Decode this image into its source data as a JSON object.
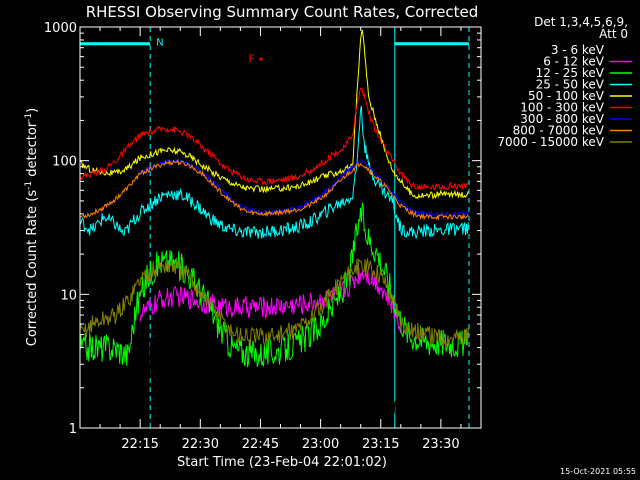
{
  "chart_data": {
    "type": "line",
    "title": "RHESSI Observing Summary Count Rates, Corrected",
    "xlabel": "Start Time (23-Feb-04 22:01:02)",
    "ylabel_main": "Corrected Count Rate (s",
    "ylabel_sup1": "-1",
    "ylabel_mid": " detector",
    "ylabel_sup2": "-1",
    "ylabel_end": ")",
    "y_scale": "log",
    "ylim": [
      1,
      1000
    ],
    "y_ticks": [
      {
        "v": 1,
        "label": "1"
      },
      {
        "v": 10,
        "label": "10"
      },
      {
        "v": 100,
        "label": "100"
      },
      {
        "v": 1000,
        "label": "1000"
      }
    ],
    "xlim_minutes_after_22h": [
      0,
      100
    ],
    "x_ticks": [
      {
        "t": 15,
        "label": "22:15"
      },
      {
        "t": 30,
        "label": "22:30"
      },
      {
        "t": 45,
        "label": "22:45"
      },
      {
        "t": 60,
        "label": "23:00"
      },
      {
        "t": 75,
        "label": "23:15"
      },
      {
        "t": 90,
        "label": "23:30"
      }
    ],
    "legend_header": [
      "Det 1,3,4,5,6,9,",
      "Att 0"
    ],
    "legend_position": "top-right",
    "annotations": {
      "night_label": "N",
      "flare_label": "F",
      "night_ranges": [
        [
          0,
          17.5
        ],
        [
          78.5,
          97
        ]
      ],
      "night_level": 750,
      "flare_flag": {
        "t": 44,
        "v": 580
      },
      "dashed_lines": [
        17.5,
        97
      ],
      "solid_lines": [
        0,
        78.5
      ]
    },
    "series": [
      {
        "name": "3 - 6 keV",
        "color": "#000000",
        "points": [
          [
            13,
            0.5
          ],
          [
            13.5,
            2.2
          ],
          [
            15,
            2.6
          ],
          [
            17,
            3.0
          ],
          [
            19,
            5.0
          ],
          [
            22,
            7.2
          ],
          [
            25,
            7.8
          ],
          [
            28,
            7.6
          ],
          [
            31,
            6.2
          ],
          [
            34,
            4.2
          ],
          [
            37,
            2.8
          ],
          [
            40,
            2.3
          ],
          [
            43,
            2.6
          ],
          [
            47,
            2.8
          ],
          [
            50,
            2.9
          ],
          [
            53,
            3.1
          ],
          [
            56,
            3.3
          ],
          [
            59,
            4.0
          ],
          [
            62,
            5.2
          ],
          [
            65,
            6.8
          ],
          [
            68,
            9.5
          ],
          [
            70,
            12.5
          ],
          [
            71,
            13.5
          ],
          [
            72,
            12.0
          ],
          [
            74,
            8.0
          ],
          [
            76,
            3.8
          ],
          [
            78,
            1.8
          ],
          [
            80,
            1.0
          ],
          [
            81,
            0.5
          ]
        ]
      },
      {
        "name": "6 - 12 keV",
        "color": "#ff00ff",
        "points": [
          [
            15,
            7.2
          ],
          [
            18,
            8.0
          ],
          [
            20,
            9.2
          ],
          [
            24,
            9.6
          ],
          [
            28,
            9.3
          ],
          [
            32,
            8.5
          ],
          [
            36,
            8.0
          ],
          [
            40,
            8.0
          ],
          [
            44,
            8.0
          ],
          [
            48,
            8.1
          ],
          [
            52,
            8.2
          ],
          [
            56,
            8.5
          ],
          [
            60,
            9.0
          ],
          [
            64,
            10.0
          ],
          [
            67,
            11.5
          ],
          [
            70,
            14.5
          ],
          [
            71,
            15.0
          ],
          [
            73,
            13.0
          ],
          [
            75,
            11.5
          ],
          [
            77,
            9.0
          ],
          [
            79,
            7.0
          ],
          [
            80,
            6.0
          ]
        ]
      },
      {
        "name": "12 - 25 keV",
        "color": "#00ff00",
        "points": [
          [
            0,
            4.0
          ],
          [
            3,
            4.0
          ],
          [
            6,
            4.0
          ],
          [
            9,
            4.0
          ],
          [
            12,
            3.5
          ],
          [
            14,
            8.0
          ],
          [
            17,
            14.0
          ],
          [
            20,
            17.5
          ],
          [
            23,
            17.5
          ],
          [
            26,
            15.5
          ],
          [
            29,
            12.0
          ],
          [
            32,
            8.5
          ],
          [
            35,
            5.5
          ],
          [
            38,
            4.0
          ],
          [
            42,
            3.6
          ],
          [
            46,
            3.6
          ],
          [
            50,
            3.8
          ],
          [
            54,
            4.2
          ],
          [
            58,
            5.2
          ],
          [
            61,
            6.5
          ],
          [
            64,
            9.0
          ],
          [
            67,
            13.0
          ],
          [
            68.5,
            24.0
          ],
          [
            69.5,
            35.0
          ],
          [
            70.2,
            40.0
          ],
          [
            71,
            32.0
          ],
          [
            72,
            26.0
          ],
          [
            74,
            21.0
          ],
          [
            76,
            15.0
          ],
          [
            78,
            10.0
          ],
          [
            80,
            6.5
          ],
          [
            82,
            5.0
          ],
          [
            86,
            4.5
          ],
          [
            90,
            4.4
          ],
          [
            94,
            4.3
          ],
          [
            97,
            4.3
          ]
        ]
      },
      {
        "name": "25 - 50 keV",
        "color": "#00ffff",
        "points": [
          [
            0,
            35
          ],
          [
            3,
            30
          ],
          [
            6,
            38
          ],
          [
            9,
            33
          ],
          [
            11,
            28
          ],
          [
            14,
            38
          ],
          [
            17,
            46
          ],
          [
            20,
            54
          ],
          [
            23,
            57
          ],
          [
            26,
            54
          ],
          [
            29,
            47
          ],
          [
            32,
            38
          ],
          [
            35,
            33
          ],
          [
            38,
            30
          ],
          [
            41,
            29
          ],
          [
            45,
            29
          ],
          [
            49,
            30
          ],
          [
            53,
            31
          ],
          [
            57,
            34
          ],
          [
            60,
            39
          ],
          [
            63,
            45
          ],
          [
            66,
            50
          ],
          [
            68,
            55
          ],
          [
            69,
            90
          ],
          [
            70,
            260
          ],
          [
            71,
            130
          ],
          [
            72,
            90
          ],
          [
            74,
            70
          ],
          [
            76,
            58
          ],
          [
            78,
            50
          ],
          [
            79,
            38
          ],
          [
            80,
            31
          ],
          [
            83,
            29
          ],
          [
            86,
            30
          ],
          [
            90,
            30
          ],
          [
            94,
            31
          ],
          [
            97,
            31
          ]
        ]
      },
      {
        "name": "50 - 100 keV",
        "color": "#ffff00",
        "points": [
          [
            0,
            95
          ],
          [
            3,
            85
          ],
          [
            6,
            82
          ],
          [
            9,
            80
          ],
          [
            12,
            88
          ],
          [
            15,
            105
          ],
          [
            18,
            113
          ],
          [
            21,
            120
          ],
          [
            24,
            118
          ],
          [
            27,
            110
          ],
          [
            30,
            95
          ],
          [
            33,
            82
          ],
          [
            36,
            73
          ],
          [
            39,
            66
          ],
          [
            42,
            62
          ],
          [
            46,
            61
          ],
          [
            50,
            62
          ],
          [
            54,
            64
          ],
          [
            57,
            68
          ],
          [
            60,
            75
          ],
          [
            63,
            80
          ],
          [
            66,
            85
          ],
          [
            68,
            92
          ],
          [
            69,
            300
          ],
          [
            70,
            800
          ],
          [
            70.5,
            1000
          ],
          [
            71,
            620
          ],
          [
            72,
            300
          ],
          [
            74,
            190
          ],
          [
            76,
            120
          ],
          [
            78,
            85
          ],
          [
            80,
            70
          ],
          [
            83,
            55
          ],
          [
            86,
            55
          ],
          [
            90,
            56
          ],
          [
            94,
            56
          ],
          [
            97,
            56
          ]
        ]
      },
      {
        "name": "100 - 300 keV",
        "color": "#ff0000",
        "points": [
          [
            0,
            75
          ],
          [
            3,
            80
          ],
          [
            6,
            85
          ],
          [
            9,
            100
          ],
          [
            12,
            125
          ],
          [
            15,
            155
          ],
          [
            18,
            165
          ],
          [
            21,
            175
          ],
          [
            24,
            170
          ],
          [
            27,
            155
          ],
          [
            30,
            130
          ],
          [
            33,
            110
          ],
          [
            36,
            90
          ],
          [
            39,
            80
          ],
          [
            42,
            72
          ],
          [
            46,
            70
          ],
          [
            50,
            72
          ],
          [
            54,
            75
          ],
          [
            57,
            82
          ],
          [
            60,
            95
          ],
          [
            63,
            110
          ],
          [
            66,
            125
          ],
          [
            68,
            160
          ],
          [
            69,
            250
          ],
          [
            70,
            360
          ],
          [
            71,
            300
          ],
          [
            72,
            230
          ],
          [
            74,
            160
          ],
          [
            76,
            125
          ],
          [
            78,
            100
          ],
          [
            80,
            80
          ],
          [
            83,
            65
          ],
          [
            86,
            63
          ],
          [
            90,
            64
          ],
          [
            94,
            65
          ],
          [
            97,
            65
          ]
        ]
      },
      {
        "name": "300 - 800 keV",
        "color": "#0000ff",
        "points": [
          [
            15,
            80
          ],
          [
            18,
            90
          ],
          [
            21,
            97
          ],
          [
            24,
            100
          ],
          [
            27,
            95
          ],
          [
            30,
            85
          ],
          [
            33,
            70
          ],
          [
            36,
            58
          ],
          [
            39,
            48
          ],
          [
            42,
            43
          ],
          [
            46,
            41
          ],
          [
            50,
            42
          ],
          [
            54,
            44
          ],
          [
            57,
            48
          ],
          [
            60,
            55
          ],
          [
            63,
            65
          ],
          [
            66,
            80
          ],
          [
            68,
            90
          ],
          [
            70,
            100
          ],
          [
            72,
            90
          ],
          [
            74,
            78
          ],
          [
            76,
            68
          ],
          [
            78,
            58
          ],
          [
            80,
            48
          ],
          [
            83,
            42
          ],
          [
            86,
            40
          ],
          [
            90,
            40
          ],
          [
            94,
            40
          ],
          [
            97,
            40
          ]
        ]
      },
      {
        "name": "800 - 7000 keV",
        "color": "#ff8000",
        "points": [
          [
            0,
            38
          ],
          [
            3,
            40
          ],
          [
            6,
            45
          ],
          [
            9,
            52
          ],
          [
            12,
            63
          ],
          [
            15,
            80
          ],
          [
            18,
            88
          ],
          [
            21,
            95
          ],
          [
            24,
            98
          ],
          [
            27,
            93
          ],
          [
            30,
            82
          ],
          [
            33,
            67
          ],
          [
            36,
            55
          ],
          [
            39,
            46
          ],
          [
            42,
            41
          ],
          [
            46,
            40
          ],
          [
            50,
            41
          ],
          [
            54,
            43
          ],
          [
            57,
            46
          ],
          [
            60,
            52
          ],
          [
            63,
            62
          ],
          [
            66,
            76
          ],
          [
            68,
            86
          ],
          [
            70,
            97
          ],
          [
            72,
            86
          ],
          [
            74,
            74
          ],
          [
            76,
            65
          ],
          [
            78,
            55
          ],
          [
            80,
            46
          ],
          [
            83,
            40
          ],
          [
            86,
            38
          ],
          [
            90,
            38
          ],
          [
            94,
            38
          ],
          [
            97,
            38
          ]
        ]
      },
      {
        "name": "7000 - 15000 keV",
        "color": "#808000",
        "points": [
          [
            0,
            5.0
          ],
          [
            3,
            6.0
          ],
          [
            6,
            6.5
          ],
          [
            9,
            7.0
          ],
          [
            12,
            9.0
          ],
          [
            15,
            13.0
          ],
          [
            18,
            15.0
          ],
          [
            21,
            16.5
          ],
          [
            24,
            16.0
          ],
          [
            27,
            13.5
          ],
          [
            30,
            10.5
          ],
          [
            33,
            8.0
          ],
          [
            36,
            6.0
          ],
          [
            39,
            5.0
          ],
          [
            42,
            4.8
          ],
          [
            46,
            4.8
          ],
          [
            50,
            5.0
          ],
          [
            54,
            5.5
          ],
          [
            57,
            6.5
          ],
          [
            60,
            8.0
          ],
          [
            63,
            10.5
          ],
          [
            66,
            13.5
          ],
          [
            68,
            15.5
          ],
          [
            70,
            16.0
          ],
          [
            72,
            16.0
          ],
          [
            74,
            15.0
          ],
          [
            76,
            12.5
          ],
          [
            78,
            9.0
          ],
          [
            80,
            6.5
          ],
          [
            82,
            5.5
          ],
          [
            86,
            5.0
          ],
          [
            90,
            4.8
          ],
          [
            94,
            4.8
          ],
          [
            97,
            4.8
          ]
        ]
      }
    ]
  },
  "footer_timestamp": "15-Oct-2021 05:55"
}
